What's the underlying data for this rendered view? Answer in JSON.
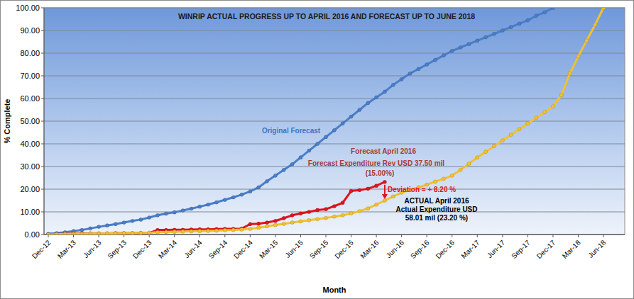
{
  "chart_data": {
    "type": "line",
    "title": "WINRIP ACTUAL PROGRESS UP TO APRIL 2016 AND FORECAST UP TO JUNE 2018",
    "x_label": "Month",
    "y_label": "% Complete",
    "categories": [
      "Dec-12",
      null,
      null,
      "Mar-13",
      null,
      null,
      "Jun-13",
      null,
      null,
      "Sep-13",
      null,
      null,
      "Dec-13",
      null,
      null,
      "Mar-14",
      null,
      null,
      "Jun-14",
      null,
      null,
      "Sep-14",
      null,
      null,
      "Dec-14",
      null,
      null,
      "Mar-15",
      null,
      null,
      "Jun-15",
      null,
      null,
      "Sep-15",
      null,
      null,
      "Dec-15",
      null,
      null,
      "Mar-16",
      null,
      null,
      "Jun-16",
      null,
      null,
      "Sep-16",
      null,
      null,
      "Dec-16",
      null,
      null,
      "Mar-17",
      null,
      null,
      "Jun-17",
      null,
      null,
      "Sep-17",
      null,
      null,
      "Dec-17",
      null,
      null,
      "Mar-18",
      null,
      null,
      "Jun-18"
    ],
    "series": [
      {
        "name": "Original Forecast",
        "color": "#4a7ec8",
        "marker": "circle",
        "values": [
          0.3,
          0.6,
          1.0,
          1.5,
          2.0,
          2.7,
          3.4,
          4.0,
          4.6,
          5.3,
          6.0,
          6.6,
          7.5,
          8.5,
          9.2,
          9.8,
          10.6,
          11.4,
          12.3,
          13.2,
          14.2,
          15.3,
          16.4,
          17.6,
          19.0,
          20.8,
          23.5,
          26.0,
          28.5,
          31.0,
          34.0,
          37.0,
          40.0,
          43.0,
          46.0,
          49.0,
          52.0,
          55.0,
          58.0,
          60.5,
          63.0,
          66.0,
          68.5,
          71.0,
          73.0,
          75.0,
          77.0,
          79.0,
          81.0,
          82.5,
          84.0,
          85.5,
          87.0,
          88.5,
          90.0,
          91.5,
          93.0,
          94.5,
          96.5,
          98.0,
          100,
          null,
          null,
          null,
          null,
          null,
          null
        ]
      },
      {
        "name": "ACTUAL April 2016",
        "color": "#e0141c",
        "marker": "circle",
        "values": [
          0,
          0.2,
          0.3,
          0.4,
          0.5,
          0.5,
          0.5,
          0.5,
          0.6,
          0.6,
          0.6,
          0.7,
          0.7,
          2.0,
          2.0,
          2.1,
          2.1,
          2.2,
          2.3,
          2.3,
          2.4,
          2.5,
          2.5,
          2.6,
          4.6,
          4.8,
          5.3,
          6.0,
          7.2,
          8.5,
          9.3,
          10.0,
          10.8,
          11.2,
          12.5,
          14.0,
          19.2,
          19.6,
          20.2,
          21.5,
          23.2,
          null,
          null,
          null,
          null,
          null,
          null,
          null,
          null,
          null,
          null,
          null,
          null,
          null,
          null,
          null,
          null,
          null,
          null,
          null,
          null,
          null,
          null,
          null,
          null,
          null,
          null
        ]
      },
      {
        "name": "Forecast April 2016",
        "color": "#f2c12e",
        "marker": "circle",
        "values": [
          0,
          0.1,
          0.2,
          0.3,
          0.3,
          0.4,
          0.4,
          0.5,
          0.5,
          0.6,
          0.6,
          0.7,
          0.8,
          1.0,
          1.1,
          1.2,
          1.3,
          1.4,
          1.5,
          1.6,
          1.7,
          1.9,
          2.0,
          2.2,
          2.5,
          3.0,
          3.6,
          4.2,
          4.7,
          5.3,
          5.8,
          6.3,
          6.8,
          7.3,
          7.9,
          8.5,
          9.3,
          10.3,
          11.5,
          13.2,
          15.0,
          16.8,
          18.5,
          19.6,
          20.8,
          22.0,
          23.3,
          24.6,
          26.0,
          28.5,
          31.2,
          34.0,
          36.5,
          39.0,
          41.5,
          44.0,
          46.5,
          49.0,
          51.5,
          54.0,
          56.5,
          61.5,
          71.0,
          78.5,
          85.5,
          92.5,
          100
        ]
      }
    ],
    "annotations": [
      "Forecast Expenditure Rev USD 37.50 mil",
      "(15.00%)",
      "Deviation = + 8.20 %",
      "Actual Expenditure  USD",
      "58.01 mil (23.20 %)"
    ],
    "ylim": [
      0,
      100
    ],
    "yticks": [
      {
        "value": 0,
        "label": "0.00"
      },
      {
        "value": 10,
        "label": "10.00"
      },
      {
        "value": 20,
        "label": "20.00"
      },
      {
        "value": 30,
        "label": "30.00"
      },
      {
        "value": 40,
        "label": "40.00"
      },
      {
        "value": 50,
        "label": "50.00"
      },
      {
        "value": 60,
        "label": "60.00"
      },
      {
        "value": 70,
        "label": "70.00"
      },
      {
        "value": 80,
        "label": "80.00"
      },
      {
        "value": 90,
        "label": "90.00"
      },
      {
        "value": 100,
        "label": "100.00"
      }
    ],
    "grid": true
  }
}
